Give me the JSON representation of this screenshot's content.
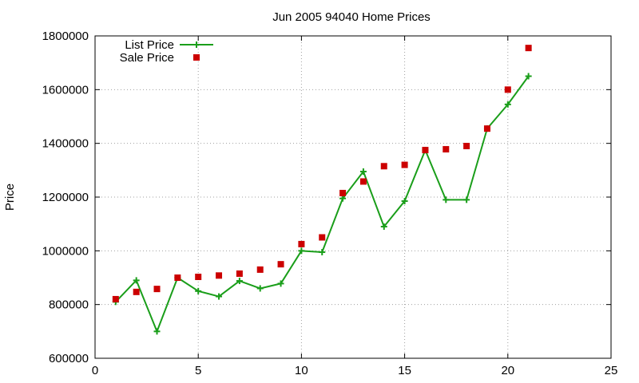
{
  "chart_data": {
    "type": "line",
    "title": "Jun 2005 94040 Home Prices",
    "xlabel": "",
    "ylabel": "Price",
    "xlim": [
      0,
      25
    ],
    "ylim": [
      600000,
      1800000
    ],
    "xticks": [
      "0",
      "5",
      "10",
      "15",
      "20",
      "25"
    ],
    "yticks": [
      "600000",
      "800000",
      "1000000",
      "1200000",
      "1400000",
      "1600000",
      "1800000"
    ],
    "grid": true,
    "legend_position": "top-left",
    "series": [
      {
        "name": "List Price",
        "style": "line-with-plus-markers",
        "color": "#1a9e1a",
        "x": [
          1,
          2,
          3,
          4,
          5,
          6,
          7,
          8,
          9,
          10,
          11,
          12,
          13,
          14,
          15,
          16,
          17,
          18,
          19,
          20,
          21
        ],
        "values": [
          810000,
          890000,
          700000,
          900000,
          850000,
          830000,
          888000,
          860000,
          878000,
          1000000,
          995000,
          1195000,
          1295000,
          1090000,
          1185000,
          1375000,
          1190000,
          1190000,
          1455000,
          1545000,
          1650000
        ]
      },
      {
        "name": "Sale Price",
        "style": "square-markers",
        "color": "#cc0000",
        "x": [
          1,
          2,
          3,
          4,
          5,
          6,
          7,
          8,
          9,
          10,
          11,
          12,
          13,
          14,
          15,
          16,
          17,
          18,
          19,
          20,
          21
        ],
        "values": [
          820000,
          847000,
          858000,
          900000,
          903000,
          908000,
          915000,
          930000,
          950000,
          1025000,
          1050000,
          1215000,
          1258000,
          1315000,
          1320000,
          1375000,
          1378000,
          1390000,
          1455000,
          1600000,
          1755000
        ]
      }
    ]
  }
}
